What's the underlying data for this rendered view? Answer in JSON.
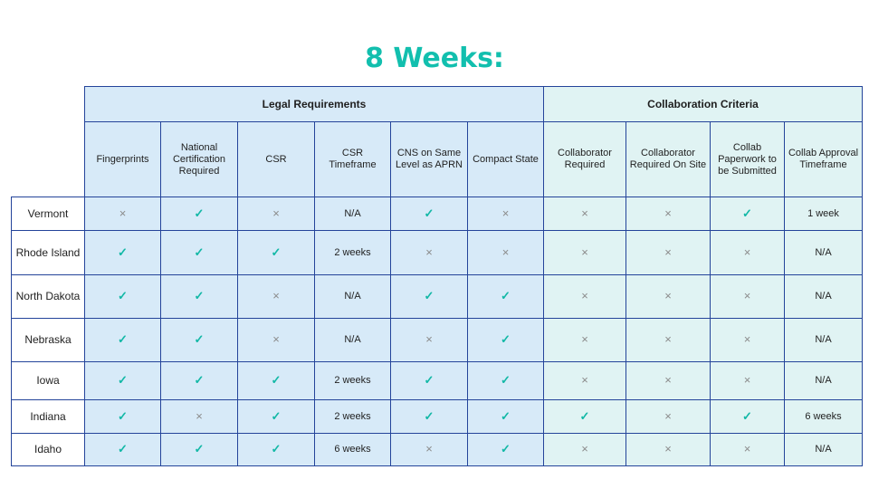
{
  "title": "8 Weeks:",
  "groups": {
    "legal": "Legal Requirements",
    "collab": "Collaboration Criteria"
  },
  "columns": [
    "Fingerprints",
    "National Certification Required",
    "CSR",
    "CSR Timeframe",
    "CNS on Same Level as APRN",
    "Compact State",
    "Collaborator Required",
    "Collaborator Required On Site",
    "Collab Paperwork to be Submitted",
    "Collab Approval Timeframe"
  ],
  "symbols": {
    "yes": "✓",
    "no": "×"
  },
  "colors": {
    "accent": "#12bfae",
    "legal_bg": "#d7eaf8",
    "collab_bg": "#e0f3f3",
    "border": "#24449a"
  },
  "rows": [
    {
      "state": "Vermont",
      "cells": [
        "no",
        "yes",
        "no",
        "N/A",
        "yes",
        "no",
        "no",
        "no",
        "yes",
        "1 week"
      ]
    },
    {
      "state": "Rhode Island",
      "cells": [
        "yes",
        "yes",
        "yes",
        "2 weeks",
        "no",
        "no",
        "no",
        "no",
        "no",
        "N/A"
      ]
    },
    {
      "state": "North Dakota",
      "cells": [
        "yes",
        "yes",
        "no",
        "N/A",
        "yes",
        "yes",
        "no",
        "no",
        "no",
        "N/A"
      ]
    },
    {
      "state": "Nebraska",
      "cells": [
        "yes",
        "yes",
        "no",
        "N/A",
        "no",
        "yes",
        "no",
        "no",
        "no",
        "N/A"
      ]
    },
    {
      "state": "Iowa",
      "cells": [
        "yes",
        "yes",
        "yes",
        "2 weeks",
        "yes",
        "yes",
        "no",
        "no",
        "no",
        "N/A"
      ]
    },
    {
      "state": "Indiana",
      "cells": [
        "yes",
        "no",
        "yes",
        "2 weeks",
        "yes",
        "yes",
        "yes",
        "no",
        "yes",
        "6 weeks"
      ]
    },
    {
      "state": "Idaho",
      "cells": [
        "yes",
        "yes",
        "yes",
        "6 weeks",
        "no",
        "yes",
        "no",
        "no",
        "no",
        "N/A"
      ]
    }
  ]
}
